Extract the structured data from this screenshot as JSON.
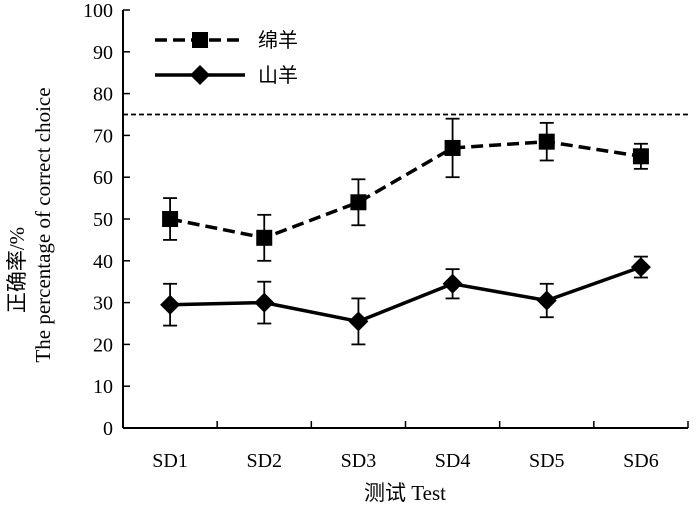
{
  "chart_data": {
    "type": "line",
    "title": "",
    "xlabel": "测试 Test",
    "ylabel_cn": "正确率/%",
    "ylabel_en": "The percentage of correct choice",
    "ylim": [
      0,
      100
    ],
    "yticks": [
      0,
      10,
      20,
      30,
      40,
      50,
      60,
      70,
      80,
      90,
      100
    ],
    "categories": [
      "SD1",
      "SD2",
      "SD3",
      "SD4",
      "SD5",
      "SD6"
    ],
    "reference_line": {
      "value": 75,
      "style": "dashed"
    },
    "legend_position": "top-left",
    "series": [
      {
        "name": "绵羊",
        "marker": "square",
        "line_style": "dashed",
        "values": [
          50,
          45.5,
          54,
          67,
          68.5,
          65
        ],
        "error": [
          5,
          5.5,
          5.5,
          7,
          4.5,
          3
        ]
      },
      {
        "name": "山羊",
        "marker": "diamond",
        "line_style": "solid",
        "values": [
          29.5,
          30,
          25.5,
          34.5,
          30.5,
          38.5
        ],
        "error": [
          5,
          5,
          5.5,
          3.5,
          4,
          2.5
        ]
      }
    ]
  }
}
